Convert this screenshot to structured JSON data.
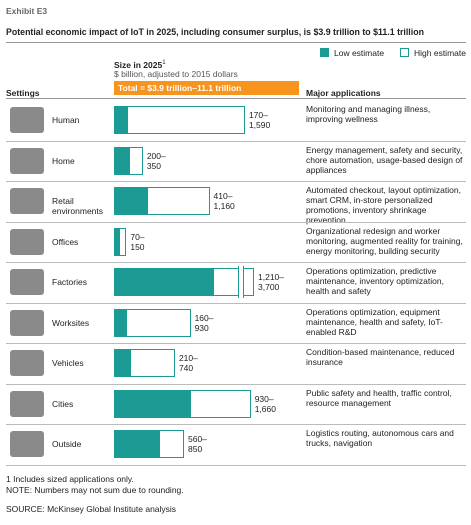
{
  "chart_data": {
    "type": "bar",
    "exhibit": "Exhibit E3",
    "title": "Potential economic impact of IoT in 2025, including consumer surplus, is $3.9 trillion to $11.1 trillion",
    "size_label": "Size in 2025",
    "size_footnote_mark": "1",
    "units": "$ billion, adjusted to 2015 dollars",
    "total_label": "Total = $3.9 trillion–11.1 trillion",
    "total_color": "#f7941d",
    "settings_header": "Settings",
    "applications_header": "Major applications",
    "categories": [
      "Human",
      "Home",
      "Retail environments",
      "Offices",
      "Factories",
      "Worksites",
      "Vehicles",
      "Cities",
      "Outside"
    ],
    "xlim": [
      0,
      1700
    ],
    "series": [
      {
        "name": "Low estimate",
        "color": "#1c9a94",
        "values": [
          170,
          200,
          410,
          70,
          1210,
          160,
          210,
          930,
          560
        ],
        "value_labels": [
          "170–",
          "200–",
          "410–",
          "70–",
          "1,210–",
          "160–",
          "210–",
          "930–",
          "560–"
        ]
      },
      {
        "name": "High estimate",
        "color": "#ffffff",
        "edgecolor": "#1c9a94",
        "values": [
          1590,
          350,
          1160,
          150,
          3700,
          930,
          740,
          1660,
          850
        ],
        "value_labels": [
          "1,590",
          "350",
          "1,160",
          "150",
          "3,700",
          "930",
          "740",
          "1,660",
          "850"
        ]
      }
    ],
    "applications": [
      "Monitoring and managing illness, improving wellness",
      "Energy management, safety and security, chore automation, usage-based design of appliances",
      "Automated checkout, layout optimization, smart CRM, in-store personalized promotions, inventory shrinkage prevention",
      "Organizational redesign and worker monitoring, augmented reality for training, energy monitoring, building security",
      "Operations optimization, predictive maintenance, inventory optimization, health and safety",
      "Operations optimization, equipment maintenance, health and safety, IoT-enabled R&D",
      "Condition-based maintenance, reduced insurance",
      "Public safety and health, traffic control, resource management",
      "Logistics routing, autonomous cars and trucks, navigation"
    ],
    "footnotes": [
      "1  Includes sized applications only.",
      "NOTE: Numbers may not sum due to rounding."
    ],
    "source": "SOURCE: McKinsey Global Institute analysis"
  }
}
